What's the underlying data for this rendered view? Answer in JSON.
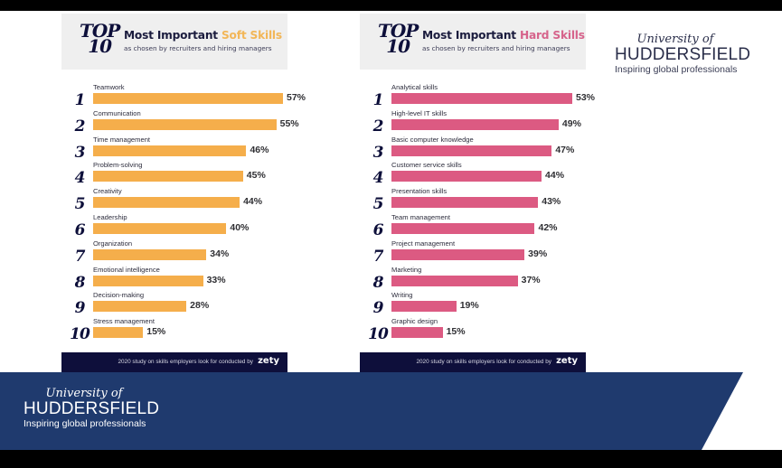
{
  "logo": {
    "line1": "University of",
    "line2": "HUDDERSFIELD",
    "tagline": "Inspiring global professionals"
  },
  "colors": {
    "soft_bar": "#f5ae4b",
    "hard_bar": "#dc5a82",
    "navy": "#0e0f3b",
    "banner_blue": "#1f3a6e"
  },
  "chart_data": [
    {
      "type": "bar",
      "orientation": "horizontal",
      "badge_top": "TOP",
      "badge_bottom": "10",
      "title_prefix": "Most Important ",
      "title_accent": "Soft Skills",
      "subtitle": "as chosen by recruiters and hiring managers",
      "footer": "2020 study on skills employers look for conducted by",
      "footer_brand": "zety",
      "xlim": [
        0,
        57
      ],
      "categories": [
        "Teamwork",
        "Communication",
        "Time management",
        "Problem-solving",
        "Creativity",
        "Leadership",
        "Organization",
        "Emotional intelligence",
        "Decision-making",
        "Stress management"
      ],
      "ranks": [
        "1",
        "2",
        "3",
        "4",
        "5",
        "6",
        "7",
        "8",
        "9",
        "10"
      ],
      "values": [
        57,
        55,
        46,
        45,
        44,
        40,
        34,
        33,
        28,
        15
      ],
      "labels": [
        "57%",
        "55%",
        "46%",
        "45%",
        "44%",
        "40%",
        "34%",
        "33%",
        "28%",
        "15%"
      ]
    },
    {
      "type": "bar",
      "orientation": "horizontal",
      "badge_top": "TOP",
      "badge_bottom": "10",
      "title_prefix": "Most Important ",
      "title_accent": "Hard Skills",
      "subtitle": "as chosen by recruiters and hiring managers",
      "footer": "2020 study on skills employers look for conducted by",
      "footer_brand": "zety",
      "xlim": [
        0,
        53
      ],
      "categories": [
        "Analytical skills",
        "High-level IT skills",
        "Basic computer knowledge",
        "Customer service skills",
        "Presentation skills",
        "Team management",
        "Project management",
        "Marketing",
        "Writing",
        "Graphic design"
      ],
      "ranks": [
        "1",
        "2",
        "3",
        "4",
        "5",
        "6",
        "7",
        "8",
        "9",
        "10"
      ],
      "values": [
        53,
        49,
        47,
        44,
        43,
        42,
        39,
        37,
        19,
        15
      ],
      "labels": [
        "53%",
        "49%",
        "47%",
        "44%",
        "43%",
        "42%",
        "39%",
        "37%",
        "19%",
        "15%"
      ]
    }
  ]
}
